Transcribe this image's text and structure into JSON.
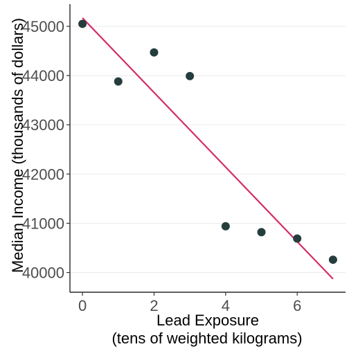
{
  "chart_data": {
    "type": "scatter",
    "title": "",
    "xlabel_lines": [
      "Lead Exposure",
      "(tens of weighted kilograms)"
    ],
    "ylabel": "Median Income (thousands of dollars)",
    "xlim": [
      -0.35,
      7.35
    ],
    "ylim": [
      39600,
      45450
    ],
    "x_ticks": [
      0,
      2,
      4,
      6
    ],
    "y_ticks": [
      40000,
      41000,
      42000,
      43000,
      44000,
      45000
    ],
    "points": [
      {
        "x": 0,
        "y": 45050
      },
      {
        "x": 1,
        "y": 43880
      },
      {
        "x": 2,
        "y": 44470
      },
      {
        "x": 3,
        "y": 43990
      },
      {
        "x": 4,
        "y": 40940
      },
      {
        "x": 5,
        "y": 40820
      },
      {
        "x": 6,
        "y": 40690
      },
      {
        "x": 7,
        "y": 40260
      }
    ],
    "trend_line": {
      "x0": 0,
      "y0": 45170,
      "x1": 7,
      "y1": 39870
    },
    "grid": "horizontal",
    "colors": {
      "points": "#263d3d",
      "trend_line": "#d42c6a"
    }
  }
}
